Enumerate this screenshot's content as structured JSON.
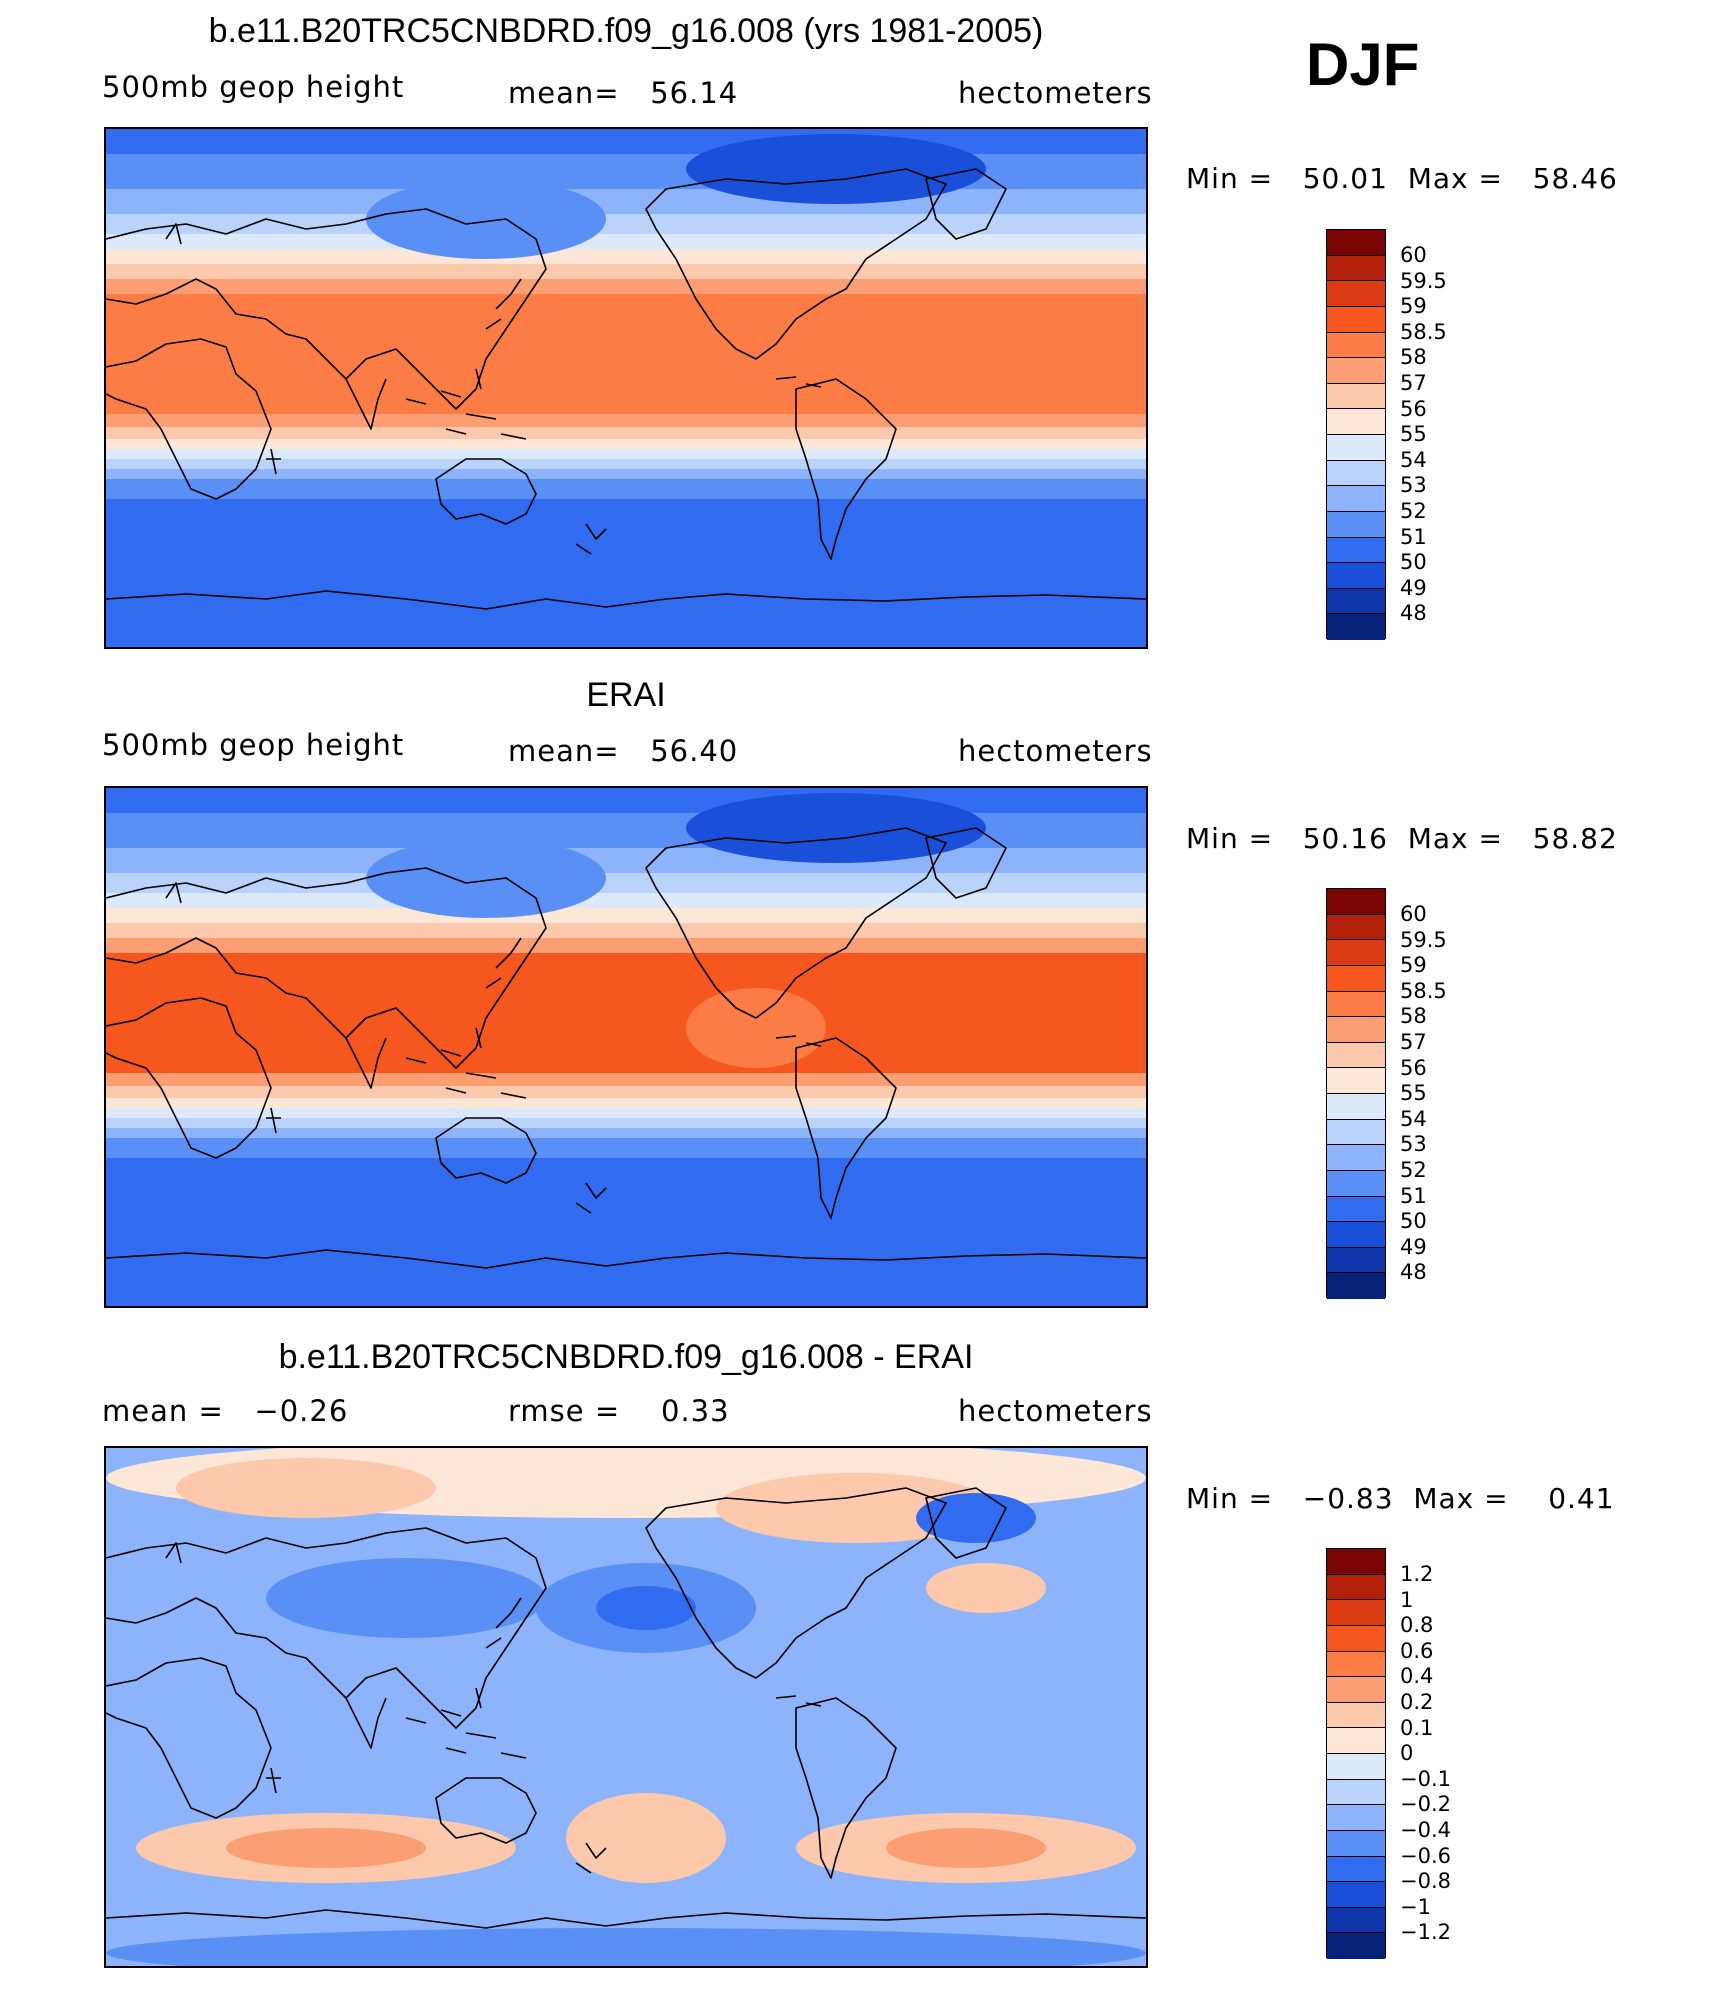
{
  "season": "DJF",
  "panels": [
    {
      "title": "b.e11.B20TRC5CNBDRD.f09_g16.008 (yrs 1981-2005)",
      "left_label": "500mb geop height",
      "mid_label": "mean=   56.14",
      "units": "hectometers",
      "minmax": "Min =   50.01  Max =   58.46",
      "colorbar_labels": [
        "60",
        "59.5",
        "59",
        "58.5",
        "58",
        "57",
        "56",
        "55",
        "54",
        "53",
        "52",
        "51",
        "50",
        "49",
        "48"
      ],
      "colors": [
        "#7a0403",
        "#b2200a",
        "#dc3a12",
        "#f5571f",
        "#fb7d45",
        "#fc9e74",
        "#fdc9ad",
        "#fee7d6",
        "#dbe9fb",
        "#b9d3fb",
        "#8db4fa",
        "#5a8ff5",
        "#316cf0",
        "#1a4fd9",
        "#0f35aa",
        "#08227a"
      ]
    },
    {
      "title": "ERAI",
      "left_label": "500mb geop height",
      "mid_label": "mean=   56.40",
      "units": "hectometers",
      "minmax": "Min =   50.16  Max =   58.82",
      "colorbar_labels": [
        "60",
        "59.5",
        "59",
        "58.5",
        "58",
        "57",
        "56",
        "55",
        "54",
        "53",
        "52",
        "51",
        "50",
        "49",
        "48"
      ],
      "colors": [
        "#7a0403",
        "#b2200a",
        "#dc3a12",
        "#f5571f",
        "#fb7d45",
        "#fc9e74",
        "#fdc9ad",
        "#fee7d6",
        "#dbe9fb",
        "#b9d3fb",
        "#8db4fa",
        "#5a8ff5",
        "#316cf0",
        "#1a4fd9",
        "#0f35aa",
        "#08227a"
      ]
    },
    {
      "title": "b.e11.B20TRC5CNBDRD.f09_g16.008 - ERAI",
      "left_label": "mean =   −0.26",
      "mid_label": "rmse =    0.33",
      "units": "hectometers",
      "minmax": "Min =   −0.83  Max =    0.41",
      "colorbar_labels": [
        "1.2",
        "1",
        "0.8",
        "0.6",
        "0.4",
        "0.2",
        "0.1",
        "0",
        "−0.1",
        "−0.2",
        "−0.4",
        "−0.6",
        "−0.8",
        "−1",
        "−1.2"
      ],
      "colors": [
        "#7a0403",
        "#b2200a",
        "#dc3a12",
        "#f5571f",
        "#fb7d45",
        "#fc9e74",
        "#fdc9ad",
        "#fee7d6",
        "#dbe9fb",
        "#b9d3fb",
        "#8db4fa",
        "#5a8ff5",
        "#316cf0",
        "#1a4fd9",
        "#0f35aa",
        "#08227a"
      ]
    }
  ]
}
